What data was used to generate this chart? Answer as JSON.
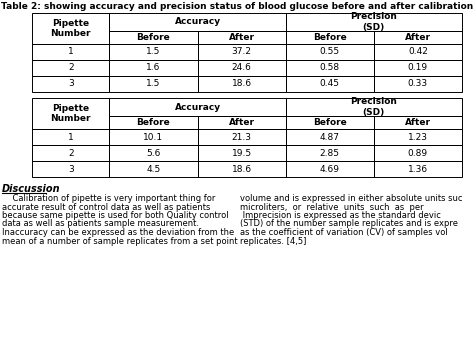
{
  "title": "Table 2: showing accuracy and precision status of blood glucose before and after calibration",
  "table1_rows": [
    [
      "1",
      "1.5",
      "37.2",
      "0.55",
      "0.42"
    ],
    [
      "2",
      "1.6",
      "24.6",
      "0.58",
      "0.19"
    ],
    [
      "3",
      "1.5",
      "18.6",
      "0.45",
      "0.33"
    ]
  ],
  "table2_rows": [
    [
      "1",
      "10.1",
      "21.3",
      "4.87",
      "1.23"
    ],
    [
      "2",
      "5.6",
      "19.5",
      "2.85",
      "0.89"
    ],
    [
      "3",
      "4.5",
      "18.6",
      "4.69",
      "1.36"
    ]
  ],
  "discussion_title": "Discussion",
  "discussion_left_lines": [
    "    Calibration of pipette is very important thing for",
    "accurate result of control data as well as patients",
    "because same pipette is used for both Quality control",
    "data as well as patients sample measurement.",
    "Inaccuracy can be expressed as the deviation from the",
    "mean of a number of sample replicates from a set point"
  ],
  "discussion_right_lines": [
    "volume and is expressed in either absolute units suc",
    "microliters,  or  relative  units  such  as  per",
    " Imprecision is expressed as the standard devic",
    "(STD) of the number sample replicates and is expre",
    "as the coefficient of variation (CV) of samples vol",
    "replicates. [4,5]"
  ],
  "bg_color": "#ffffff",
  "font_size": 6.5,
  "title_font_size": 6.5
}
